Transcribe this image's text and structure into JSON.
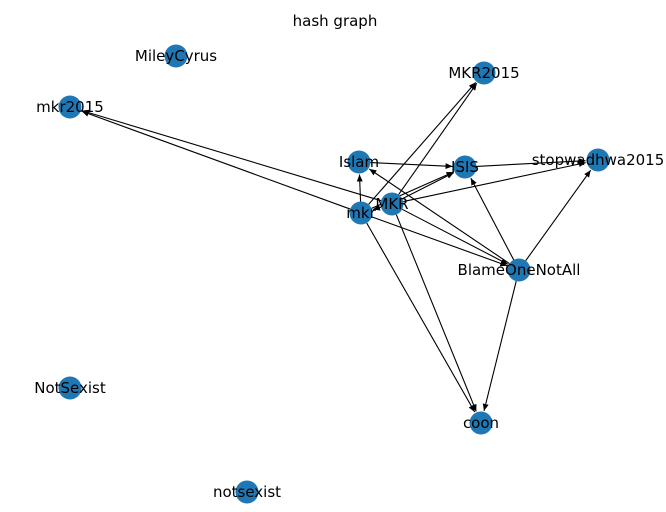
{
  "title": "hash graph",
  "colors": {
    "node": "#1f77b4",
    "edge": "#000000",
    "label": "#000000",
    "background": "#ffffff"
  },
  "nodes": [
    {
      "id": "MileyCyrus",
      "label": "MileyCyrus"
    },
    {
      "id": "MKR2015",
      "label": "MKR2015"
    },
    {
      "id": "mkr2015",
      "label": "mkr2015"
    },
    {
      "id": "Islam",
      "label": "Islam"
    },
    {
      "id": "ISIS",
      "label": "ISIS"
    },
    {
      "id": "stopwadhwa2015",
      "label": "stopwadhwa2015"
    },
    {
      "id": "MKR",
      "label": "MKR"
    },
    {
      "id": "mkr",
      "label": "mkr"
    },
    {
      "id": "BlameOneNotAll",
      "label": "BlameOneNotAll"
    },
    {
      "id": "NotSexist",
      "label": "NotSexist"
    },
    {
      "id": "coon",
      "label": "coon"
    },
    {
      "id": "notsexist",
      "label": "notsexist"
    }
  ],
  "edges": [
    {
      "source": "MKR",
      "target": "mkr2015"
    },
    {
      "source": "mkr",
      "target": "mkr2015"
    },
    {
      "source": "MKR",
      "target": "MKR2015"
    },
    {
      "source": "mkr",
      "target": "MKR2015"
    },
    {
      "source": "MKR",
      "target": "mkr"
    },
    {
      "source": "mkr",
      "target": "Islam"
    },
    {
      "source": "BlameOneNotAll",
      "target": "Islam"
    },
    {
      "source": "Islam",
      "target": "ISIS"
    },
    {
      "source": "MKR",
      "target": "ISIS"
    },
    {
      "source": "mkr",
      "target": "ISIS"
    },
    {
      "source": "BlameOneNotAll",
      "target": "ISIS"
    },
    {
      "source": "ISIS",
      "target": "stopwadhwa2015"
    },
    {
      "source": "MKR",
      "target": "stopwadhwa2015"
    },
    {
      "source": "BlameOneNotAll",
      "target": "stopwadhwa2015"
    },
    {
      "source": "MKR",
      "target": "BlameOneNotAll"
    },
    {
      "source": "mkr",
      "target": "BlameOneNotAll"
    },
    {
      "source": "MKR",
      "target": "coon"
    },
    {
      "source": "mkr",
      "target": "coon"
    },
    {
      "source": "BlameOneNotAll",
      "target": "coon"
    }
  ]
}
